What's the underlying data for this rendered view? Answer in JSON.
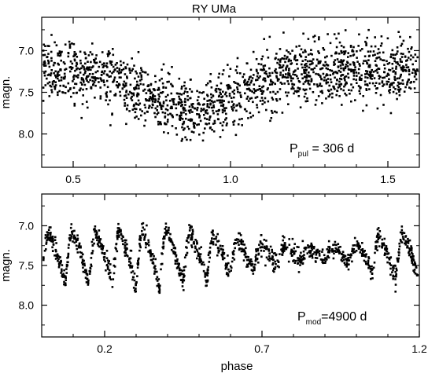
{
  "chart_data": [
    {
      "type": "scatter",
      "title": "RY UMa",
      "xlabel": "",
      "ylabel": "magn.",
      "xlim": [
        0.4,
        1.6
      ],
      "ylim": [
        8.4,
        6.6
      ],
      "y_inverted": true,
      "x_ticks": [
        "0.5",
        "1.0",
        "1.5"
      ],
      "y_ticks": [
        "7.0",
        "7.5",
        "8.0"
      ],
      "annotation": {
        "main": "P",
        "sub": "pul",
        "rest": " = 306 d"
      },
      "model": {
        "description_points": "folded pulsation light curve, mean magnitude vs phase",
        "mean_curve": [
          [
            0.4,
            7.22
          ],
          [
            0.5,
            7.24
          ],
          [
            0.6,
            7.3
          ],
          [
            0.7,
            7.45
          ],
          [
            0.8,
            7.62
          ],
          [
            0.9,
            7.7
          ],
          [
            1.0,
            7.6
          ],
          [
            1.1,
            7.38
          ],
          [
            1.2,
            7.28
          ],
          [
            1.3,
            7.24
          ],
          [
            1.4,
            7.22
          ],
          [
            1.5,
            7.23
          ],
          [
            1.6,
            7.25
          ]
        ],
        "scatter_mag": 0.18,
        "n_points": 1700
      }
    },
    {
      "type": "scatter",
      "title": "",
      "xlabel": "phase",
      "ylabel": "magn.",
      "xlim": [
        0.0,
        1.2
      ],
      "ylim": [
        8.4,
        6.6
      ],
      "y_inverted": true,
      "x_ticks": [
        "0.2",
        "0.7",
        "1.2"
      ],
      "y_ticks": [
        "7.0",
        "7.5",
        "8.0"
      ],
      "annotation": {
        "main": "P",
        "sub": "mod",
        "rest": "=4900 d"
      },
      "model": {
        "pulsation_cycles_in_window": 16,
        "amplitude_envelope": [
          [
            0.0,
            0.55
          ],
          [
            0.2,
            0.6
          ],
          [
            0.35,
            0.7
          ],
          [
            0.5,
            0.55
          ],
          [
            0.65,
            0.35
          ],
          [
            0.8,
            0.15
          ],
          [
            0.9,
            0.1
          ],
          [
            1.0,
            0.25
          ],
          [
            1.1,
            0.5
          ],
          [
            1.2,
            0.55
          ]
        ],
        "mean_mag": 7.35,
        "n_points": 1300
      }
    }
  ]
}
